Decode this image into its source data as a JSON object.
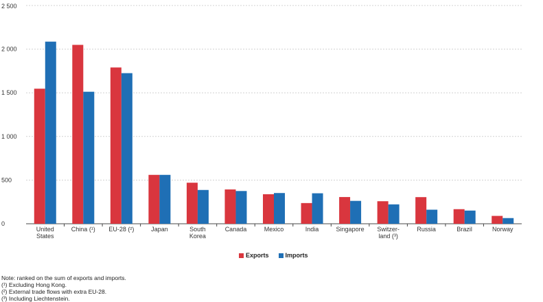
{
  "chart_data": {
    "type": "bar",
    "categories": [
      [
        "United",
        "States"
      ],
      [
        "China (¹)"
      ],
      [
        "EU-28 (²)"
      ],
      [
        "Japan"
      ],
      [
        "South",
        "Korea"
      ],
      [
        "Canada"
      ],
      [
        "Mexico"
      ],
      [
        "India"
      ],
      [
        "Singapore"
      ],
      [
        "Switzer-",
        "land (³)"
      ],
      [
        "Russia"
      ],
      [
        "Brazil"
      ],
      [
        "Norway"
      ]
    ],
    "series": [
      {
        "name": "Exports",
        "color": "#d9363e",
        "values": [
          1547,
          2049,
          1790,
          560,
          470,
          393,
          338,
          237,
          306,
          258,
          305,
          167,
          90
        ]
      },
      {
        "name": "Imports",
        "color": "#1f6fb5",
        "values": [
          2086,
          1512,
          1725,
          560,
          387,
          375,
          352,
          349,
          262,
          222,
          161,
          151,
          65
        ]
      }
    ],
    "ylim": [
      0,
      2500
    ],
    "yticks": [
      "0",
      "500",
      "1 000",
      "1 500",
      "2 000",
      "2 500"
    ],
    "ytick_values": [
      0,
      500,
      1000,
      1500,
      2000,
      2500
    ],
    "grid": true,
    "legend_position": "bottom-center",
    "notes": [
      "Note: ranked on the sum of exports and imports.",
      "(¹) Excluding Hong Kong.",
      "(²) External trade flows with extra EU-28.",
      "(³) Including Liechtenstein."
    ]
  }
}
